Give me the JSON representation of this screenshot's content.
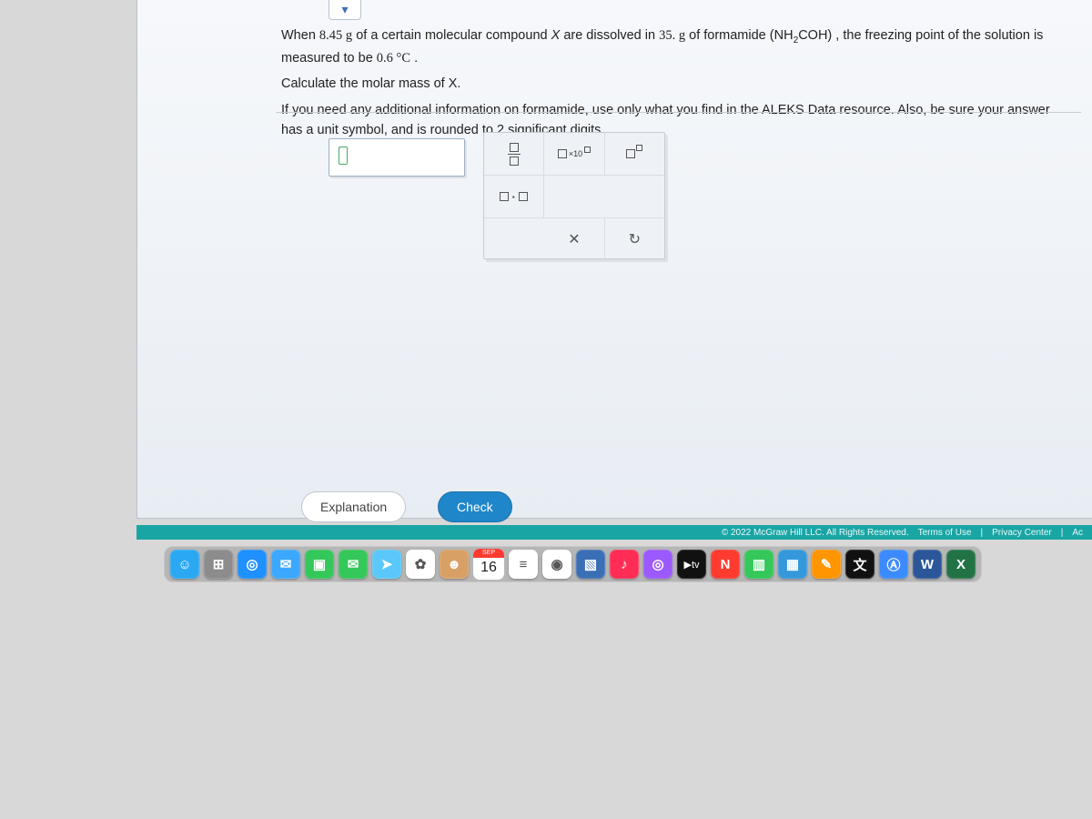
{
  "colors": {
    "panel_bg_top": "#f6f8fb",
    "panel_bg_bottom": "#e8edf3",
    "panel_border": "#b9c2cc",
    "footer_bg": "#1aa5a5",
    "check_btn_bg": "#1f87c9",
    "desk_bg": "#d8d8d8"
  },
  "problem": {
    "line1_pre": "When ",
    "mass_solute": "8.45 g",
    "line1_mid1": " of a certain molecular compound ",
    "compound_var": "X",
    "line1_mid2": " are dissolved in ",
    "mass_solvent": "35. g",
    "line1_mid3": " of formamide ",
    "solvent_formula_html": "(NH<sub>2</sub>COH)",
    "line1_mid4": ", the freezing point of the solution is measured to be ",
    "freezing_point": "0.6 °C",
    "line1_end": ".",
    "line2": "Calculate the molar mass of X.",
    "line3": "If you need any additional information on formamide, use only what you find in the ALEKS Data resource. Also, be sure your answer has a unit symbol, and is rounded to 2 significant digits.",
    "sig_digits": "2"
  },
  "answer_input": {
    "value": "",
    "placeholder": ""
  },
  "tool_palette": {
    "fraction_label": "□/□",
    "sci_label": "□×10",
    "superscript_label": "□^□",
    "dot_label": "□·□",
    "clear_label": "×",
    "reset_label": "↻"
  },
  "buttons": {
    "explanation": "Explanation",
    "check": "Check"
  },
  "footer": {
    "copyright": "© 2022 McGraw Hill LLC. All Rights Reserved.",
    "terms": "Terms of Use",
    "privacy": "Privacy Center",
    "access": "Ac"
  },
  "dock": {
    "calendar": {
      "month": "SEP",
      "day": "16"
    },
    "items": [
      {
        "name": "finder",
        "bg": "#2aa8f2",
        "glyph": "☺"
      },
      {
        "name": "launchpad",
        "bg": "#8c8c8c",
        "glyph": "⊞"
      },
      {
        "name": "safari",
        "bg": "#1e90ff",
        "glyph": "◎"
      },
      {
        "name": "mail",
        "bg": "#3ba7ff",
        "glyph": "✉"
      },
      {
        "name": "facetime",
        "bg": "#34c759",
        "glyph": "▣"
      },
      {
        "name": "messages",
        "bg": "#34c759",
        "glyph": "✉"
      },
      {
        "name": "maps",
        "bg": "#5ac8fa",
        "glyph": "➤"
      },
      {
        "name": "photos",
        "bg": "#ffffff",
        "glyph": "✿"
      },
      {
        "name": "contacts",
        "bg": "#d9a066",
        "glyph": "☻"
      },
      {
        "name": "reminders",
        "bg": "#ffffff",
        "glyph": "≡"
      },
      {
        "name": "chrome",
        "bg": "#ffffff",
        "glyph": "◉"
      },
      {
        "name": "preview",
        "bg": "#3b6fb5",
        "glyph": "▧"
      },
      {
        "name": "music",
        "bg": "#ff2d55",
        "glyph": "♪"
      },
      {
        "name": "podcasts",
        "bg": "#9b59ff",
        "glyph": "◎"
      },
      {
        "name": "tv",
        "bg": "#111111",
        "glyph": "tv"
      },
      {
        "name": "news",
        "bg": "#ff3b30",
        "glyph": "N"
      },
      {
        "name": "numbers",
        "bg": "#34c759",
        "glyph": "▥"
      },
      {
        "name": "keynote",
        "bg": "#3498db",
        "glyph": "▦"
      },
      {
        "name": "pages",
        "bg": "#ff9500",
        "glyph": "✎"
      },
      {
        "name": "translate",
        "bg": "#111111",
        "glyph": "文"
      },
      {
        "name": "appstore",
        "bg": "#3b8bff",
        "glyph": "Ⓐ"
      },
      {
        "name": "word",
        "bg": "#2b579a",
        "glyph": "W"
      },
      {
        "name": "excel",
        "bg": "#217346",
        "glyph": "X"
      }
    ]
  }
}
